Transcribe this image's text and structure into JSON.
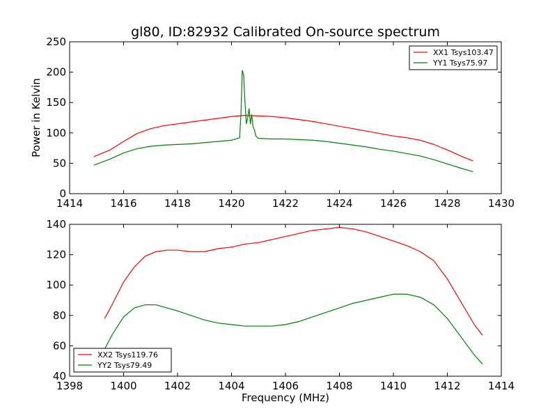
{
  "chart_data": [
    {
      "type": "line",
      "title": "gl80, ID:82932 Calibrated On-source spectrum",
      "xlabel": "",
      "ylabel": "Power in Kelvin",
      "xlim": [
        1414,
        1430
      ],
      "ylim": [
        0,
        250
      ],
      "xticks": [
        1414,
        1416,
        1418,
        1420,
        1422,
        1424,
        1426,
        1428,
        1430
      ],
      "yticks": [
        0,
        50,
        100,
        150,
        200,
        250
      ],
      "grid": false,
      "legend_position": "top-right",
      "series": [
        {
          "name": "XX1 Tsys103.47",
          "color": "#ff0000",
          "x": [
            1414.9,
            1415.5,
            1416.0,
            1416.5,
            1417.0,
            1417.5,
            1418.0,
            1418.5,
            1419.0,
            1419.5,
            1420.0,
            1420.5,
            1421.0,
            1421.5,
            1422.0,
            1422.5,
            1423.0,
            1423.5,
            1424.0,
            1424.5,
            1425.0,
            1425.5,
            1426.0,
            1426.5,
            1427.0,
            1427.5,
            1428.0,
            1428.5,
            1428.95
          ],
          "y": [
            61,
            72,
            86,
            99,
            107,
            112,
            115,
            118,
            121,
            124,
            127,
            129,
            128,
            127,
            125,
            122,
            119,
            115,
            111,
            107,
            103,
            99,
            95,
            92,
            88,
            81,
            72,
            62,
            54
          ]
        },
        {
          "name": "YY1 Tsys75.97",
          "color": "#008000",
          "x": [
            1414.9,
            1415.5,
            1416.0,
            1416.5,
            1417.0,
            1417.5,
            1418.0,
            1418.5,
            1419.0,
            1419.5,
            1420.0,
            1420.3,
            1420.35,
            1420.4,
            1420.45,
            1420.5,
            1420.55,
            1420.6,
            1420.65,
            1420.7,
            1420.75,
            1420.8,
            1420.85,
            1420.9,
            1421.0,
            1421.5,
            1422.0,
            1422.5,
            1423.0,
            1423.5,
            1424.0,
            1424.5,
            1425.0,
            1425.5,
            1426.0,
            1426.5,
            1427.0,
            1427.5,
            1428.0,
            1428.5,
            1428.95
          ],
          "y": [
            47,
            57,
            67,
            74,
            78,
            80,
            81,
            82,
            84,
            86,
            88,
            92,
            130,
            203,
            195,
            150,
            115,
            125,
            140,
            115,
            130,
            110,
            105,
            95,
            91,
            90,
            90,
            89,
            88,
            86,
            83,
            80,
            77,
            73,
            70,
            66,
            62,
            56,
            49,
            42,
            36
          ]
        }
      ]
    },
    {
      "type": "line",
      "title": "",
      "xlabel": "Frequency (MHz)",
      "ylabel": "",
      "xlim": [
        1398,
        1414
      ],
      "ylim": [
        40,
        140
      ],
      "xticks": [
        1398,
        1400,
        1402,
        1404,
        1406,
        1408,
        1410,
        1412,
        1414
      ],
      "yticks": [
        40,
        60,
        80,
        100,
        120,
        140
      ],
      "grid": false,
      "legend_position": "bottom-left",
      "series": [
        {
          "name": "XX2 Tsys119.76",
          "color": "#ff0000",
          "x": [
            1399.3,
            1399.6,
            1400.0,
            1400.4,
            1400.8,
            1401.2,
            1401.6,
            1402.0,
            1402.5,
            1403.0,
            1403.5,
            1404.0,
            1404.5,
            1405.0,
            1405.5,
            1406.0,
            1406.5,
            1407.0,
            1407.5,
            1408.0,
            1408.5,
            1409.0,
            1409.5,
            1410.0,
            1410.5,
            1411.0,
            1411.5,
            1412.0,
            1412.5,
            1413.0,
            1413.3
          ],
          "y": [
            78,
            88,
            102,
            112,
            119,
            122,
            123,
            123,
            122,
            122,
            124,
            125,
            127,
            128,
            130,
            132,
            134,
            136,
            137,
            138,
            137,
            135,
            132,
            129,
            126,
            122,
            116,
            104,
            89,
            74,
            67
          ]
        },
        {
          "name": "YY2 Tsys79.49",
          "color": "#008000",
          "x": [
            1399.3,
            1399.6,
            1400.0,
            1400.4,
            1400.8,
            1401.2,
            1401.6,
            1402.0,
            1402.5,
            1403.0,
            1403.5,
            1404.0,
            1404.5,
            1405.0,
            1405.5,
            1406.0,
            1406.5,
            1407.0,
            1407.5,
            1408.0,
            1408.5,
            1409.0,
            1409.5,
            1410.0,
            1410.5,
            1411.0,
            1411.5,
            1412.0,
            1412.5,
            1413.0,
            1413.3
          ],
          "y": [
            58,
            68,
            79,
            85,
            87,
            87,
            85,
            83,
            80,
            77,
            75,
            74,
            73,
            73,
            73,
            74,
            76,
            79,
            82,
            85,
            88,
            90,
            92,
            94,
            94,
            92,
            87,
            78,
            66,
            54,
            48
          ]
        }
      ]
    }
  ]
}
